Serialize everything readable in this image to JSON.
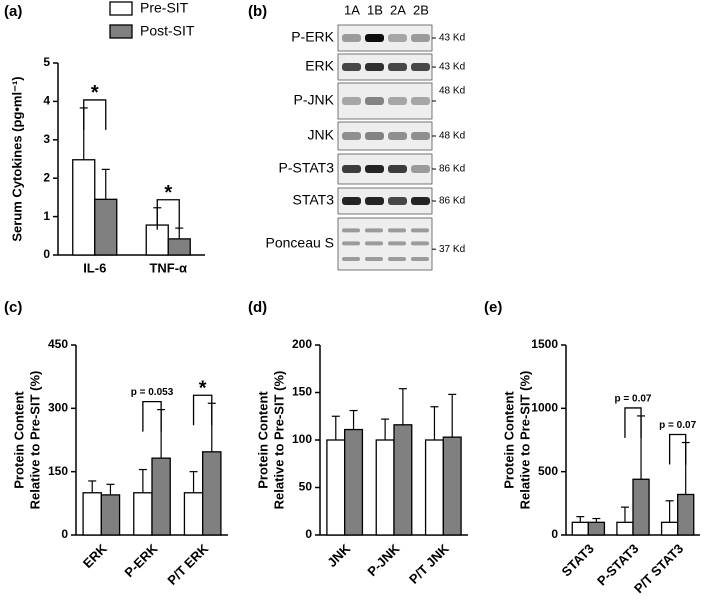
{
  "chart_data": [
    {
      "type": "bar",
      "label": "(a)",
      "y_label": [
        "Serum Cytokines (pg•ml⁻¹)"
      ],
      "categories": [
        "IL-6",
        "TNF-α"
      ],
      "series": [
        {
          "name": "Pre-SIT",
          "color": "#ffffff",
          "values": [
            2.48,
            0.78
          ],
          "errors": [
            1.35,
            0.45
          ]
        },
        {
          "name": "Post-SIT",
          "color": "#808080",
          "values": [
            1.45,
            0.42
          ],
          "errors": [
            0.78,
            0.28
          ]
        }
      ],
      "ylim": [
        0,
        5
      ],
      "yticks": [
        0,
        1,
        2,
        3,
        4,
        5
      ],
      "legend": "top",
      "annotations": [
        {
          "text": "*",
          "x": "IL-6"
        },
        {
          "text": "*",
          "x": "TNF-α"
        }
      ]
    },
    {
      "type": "bar",
      "label": "(c)",
      "y_label": [
        "Protein  Content",
        "Relative to  Pre-SIT (%)"
      ],
      "categories": [
        "ERK",
        "P-ERK",
        "P/T ERK"
      ],
      "series": [
        {
          "color": "#ffffff",
          "values": [
            100,
            100,
            100
          ],
          "errors": [
            28,
            55,
            50
          ]
        },
        {
          "color": "#808080",
          "values": [
            95,
            182,
            197
          ],
          "errors": [
            25,
            115,
            115
          ]
        }
      ],
      "ylim": [
        0,
        450
      ],
      "yticks": [
        0,
        150,
        300,
        450
      ],
      "annotations": [
        {
          "text": "p = 0.053",
          "x": "P-ERK"
        },
        {
          "text": "*",
          "x": "P/T ERK"
        }
      ]
    },
    {
      "type": "bar",
      "label": "(d)",
      "y_label": [
        "Protein  Content",
        "Relative to  Pre-SIT (%)"
      ],
      "categories": [
        "JNK",
        "P-JNK",
        "P/T JNK"
      ],
      "series": [
        {
          "color": "#ffffff",
          "values": [
            100,
            100,
            100
          ],
          "errors": [
            25,
            22,
            35
          ]
        },
        {
          "color": "#808080",
          "values": [
            111,
            116,
            103
          ],
          "errors": [
            20,
            38,
            45
          ]
        }
      ],
      "ylim": [
        0,
        200
      ],
      "yticks": [
        0,
        50,
        100,
        150,
        200
      ],
      "annotations": []
    },
    {
      "type": "bar",
      "label": "(e)",
      "y_label": [
        "Protein  Content",
        "Relative to  Pre-SIT (%)"
      ],
      "categories": [
        "STAT3",
        "P-STAT3",
        "P/T STAT3"
      ],
      "series": [
        {
          "color": "#ffffff",
          "values": [
            100,
            100,
            100
          ],
          "errors": [
            45,
            120,
            170
          ]
        },
        {
          "color": "#808080",
          "values": [
            100,
            440,
            320
          ],
          "errors": [
            30,
            500,
            410
          ]
        }
      ],
      "ylim": [
        0,
        1500
      ],
      "yticks": [
        0,
        500,
        1000,
        1500
      ],
      "annotations": [
        {
          "text": "p = 0.07",
          "x": "P-STAT3"
        },
        {
          "text": "p = 0.07",
          "x": "P/T STAT3"
        }
      ]
    }
  ],
  "blot": {
    "label": "(b)",
    "lanes": [
      "1A",
      "1B",
      "2A",
      "2B"
    ],
    "rows": [
      {
        "protein": "P-ERK",
        "size": "43 Kd"
      },
      {
        "protein": "ERK",
        "size": "43 Kd"
      },
      {
        "protein": "P-JNK",
        "size": "48 Kd"
      },
      {
        "protein": "JNK",
        "size": "48 Kd"
      },
      {
        "protein": "P-STAT3",
        "size": "86 Kd"
      },
      {
        "protein": "STAT3",
        "size": "86 Kd"
      },
      {
        "protein": "Ponceau S",
        "size": "37 Kd"
      }
    ]
  }
}
